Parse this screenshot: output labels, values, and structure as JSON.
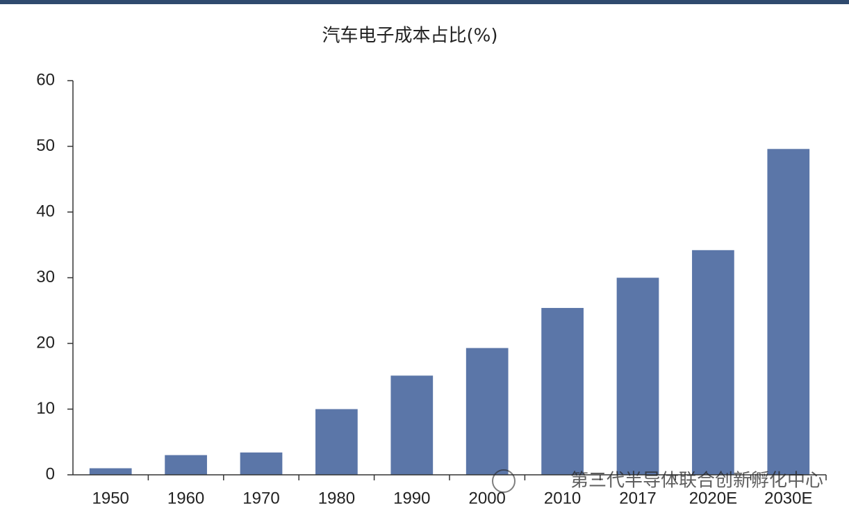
{
  "chart_data": {
    "type": "bar",
    "title": "汽车电子成本占比(%)",
    "categories": [
      "1950",
      "1960",
      "1970",
      "1980",
      "1990",
      "2000",
      "2010",
      "2017",
      "2020E",
      "2030E"
    ],
    "values": [
      1,
      3,
      3.4,
      10,
      15.1,
      19.3,
      25.4,
      30,
      34.2,
      49.6
    ],
    "color": "#5b76a8",
    "ylim": [
      0,
      60
    ],
    "yticks": [
      0,
      10,
      20,
      30,
      40,
      50,
      60
    ],
    "grid": false,
    "watermark": "第三代半导体联合创新孵化中心"
  }
}
